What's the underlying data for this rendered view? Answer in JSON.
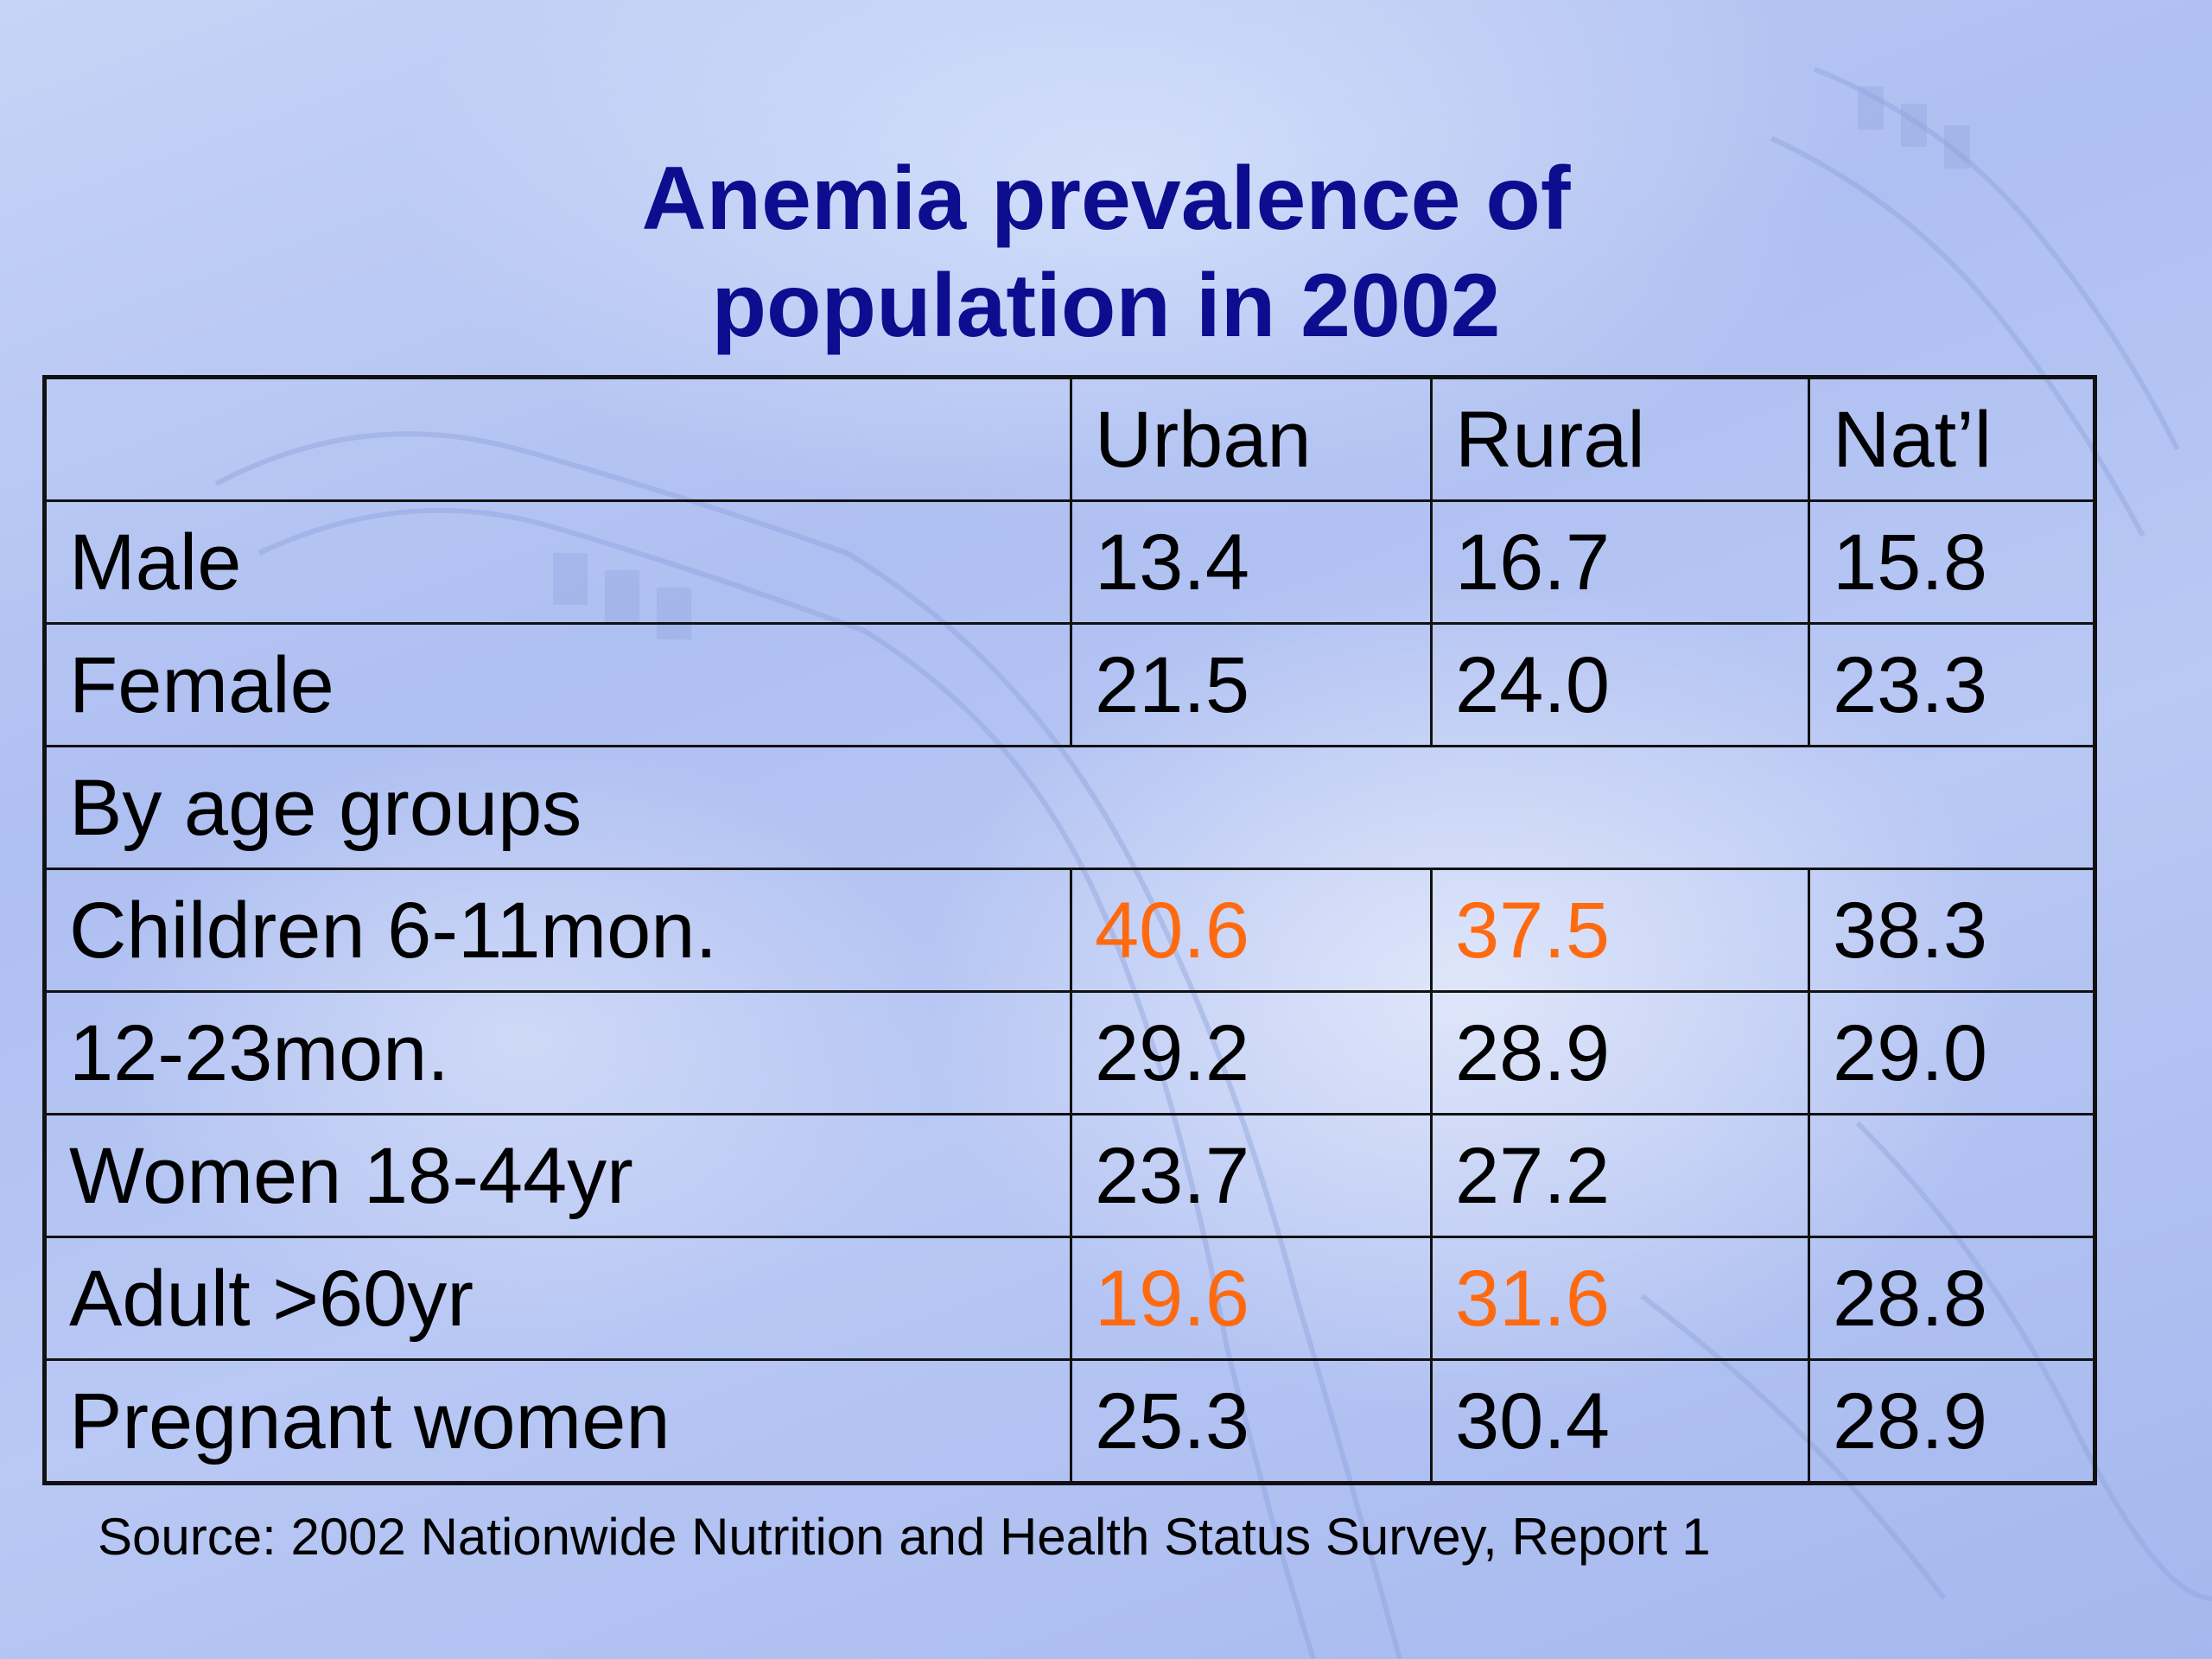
{
  "title": {
    "line1": "Anemia prevalence of",
    "line2": "population in 2002"
  },
  "table": {
    "header": [
      "",
      "Urban",
      "Rural",
      "Nat’l"
    ],
    "rows": [
      {
        "label": "Male",
        "urban": "13.4",
        "rural": "16.7",
        "natl": "15.8"
      },
      {
        "label": "Female",
        "urban": "21.5",
        "rural": "24.0",
        "natl": "23.3"
      },
      {
        "label": "By age groups"
      },
      {
        "label": "Children 6-11mon.",
        "urban": "40.6",
        "rural": "37.5",
        "natl": "38.3"
      },
      {
        "label": "12-23mon.",
        "urban": "29.2",
        "rural": "28.9",
        "natl": "29.0"
      },
      {
        "label": "Women 18-44yr",
        "urban": "23.7",
        "rural": "27.2",
        "natl": ""
      },
      {
        "label": "Adult >60yr",
        "urban": "19.6",
        "rural": "31.6",
        "natl": "28.8"
      },
      {
        "label": "Pregnant women",
        "urban": "25.3",
        "rural": "30.4",
        "natl": "28.9"
      }
    ]
  },
  "source": "Source: 2002 Nationwide Nutrition and Health Status Survey, Report 1",
  "colors": {
    "title": "#0d0d8f",
    "highlight": "#ff6a10",
    "background": "#b3c3f2"
  }
}
